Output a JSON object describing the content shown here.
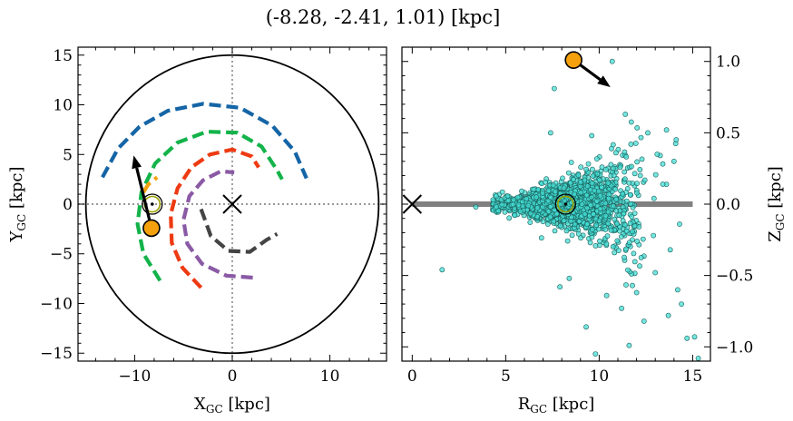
{
  "title": "(-8.28, -2.41, 1.01) [kpc]",
  "colors": {
    "arm_blue": "#1565a6",
    "arm_green": "#13b34a",
    "arm_red": "#ee3a12",
    "arm_purple": "#8a5aa5",
    "arm_dark": "#444444",
    "arm_orange": "#f2a20e",
    "star_fill": "#f5a10e",
    "sun_ring": "#9aa000",
    "scatter_fill": "#44ddd4",
    "scatter_edge": "#1a5e5a",
    "disk_line": "#808080"
  },
  "chart_data": [
    {
      "type": "line",
      "panel": "left",
      "xlabel": "X",
      "xlabel_sub": "GC",
      "xlabel_unit": " [kpc]",
      "ylabel": "Y",
      "ylabel_sub": "GC",
      "ylabel_unit": " [kpc]",
      "xlim": [
        -15.8,
        15.8
      ],
      "ylim": [
        -15.8,
        15.8
      ],
      "xticks": [
        -10,
        0,
        10
      ],
      "xtick_labels": [
        "−10",
        "0",
        "10"
      ],
      "yticks": [
        -15,
        -10,
        -5,
        0,
        5,
        10,
        15
      ],
      "ytick_labels": [
        "−15",
        "−10",
        "−5",
        "0",
        "5",
        "10",
        "15"
      ],
      "boundary_circle_radius": 15,
      "arms": [
        {
          "color_key": "arm_blue",
          "points": [
            [
              -13.3,
              2.7
            ],
            [
              -11.7,
              5.6
            ],
            [
              -9.5,
              7.8
            ],
            [
              -6.6,
              9.4
            ],
            [
              -3.0,
              10.1
            ],
            [
              0.8,
              9.7
            ],
            [
              4.1,
              7.9
            ],
            [
              6.4,
              5.3
            ],
            [
              7.6,
              2.6
            ]
          ]
        },
        {
          "color_key": "arm_green",
          "points": [
            [
              -7.4,
              -7.7
            ],
            [
              -9.1,
              -5.0
            ],
            [
              -9.7,
              -2.0
            ],
            [
              -9.3,
              1.2
            ],
            [
              -7.9,
              4.1
            ],
            [
              -5.6,
              6.2
            ],
            [
              -2.6,
              7.3
            ],
            [
              0.5,
              7.2
            ],
            [
              3.0,
              5.8
            ],
            [
              4.6,
              3.4
            ],
            [
              5.1,
              2.5
            ]
          ]
        },
        {
          "color_key": "arm_red",
          "points": [
            [
              -3.2,
              -8.4
            ],
            [
              -5.1,
              -6.4
            ],
            [
              -6.2,
              -3.9
            ],
            [
              -6.3,
              -1.0
            ],
            [
              -5.6,
              1.6
            ],
            [
              -4.2,
              3.7
            ],
            [
              -2.3,
              5.0
            ],
            [
              0.0,
              5.5
            ],
            [
              2.0,
              4.8
            ],
            [
              2.7,
              3.7
            ]
          ]
        },
        {
          "color_key": "arm_purple",
          "points": [
            [
              2.1,
              -7.4
            ],
            [
              -0.6,
              -7.2
            ],
            [
              -3.1,
              -6.0
            ],
            [
              -4.6,
              -4.0
            ],
            [
              -5.0,
              -1.6
            ],
            [
              -4.4,
              0.8
            ],
            [
              -3.0,
              2.4
            ],
            [
              -1.2,
              3.3
            ],
            [
              0.2,
              3.2
            ]
          ]
        },
        {
          "color_key": "arm_dark",
          "points": [
            [
              -3.2,
              -0.5
            ],
            [
              -2.2,
              -3.2
            ],
            [
              -0.4,
              -4.7
            ],
            [
              1.8,
              -4.8
            ],
            [
              3.5,
              -3.6
            ],
            [
              4.6,
              -3.0
            ]
          ]
        },
        {
          "color_key": "arm_orange",
          "points": [
            [
              -9.1,
              1.2
            ],
            [
              -8.6,
              2.0
            ],
            [
              -7.7,
              2.7
            ]
          ]
        }
      ],
      "sun": [
        -8.2,
        0.0
      ],
      "galactic_center": [
        0.0,
        0.0
      ],
      "star": [
        -8.28,
        -2.41
      ],
      "velocity_arrow_tip": [
        -10.1,
        4.9
      ]
    },
    {
      "type": "scatter",
      "panel": "right",
      "xlabel": "R",
      "xlabel_sub": "GC",
      "xlabel_unit": " [kpc]",
      "ylabel": "Z",
      "ylabel_sub": "GC",
      "ylabel_unit": " [kpc]",
      "xlim": [
        -0.55,
        15.95
      ],
      "ylim": [
        -1.1,
        1.1
      ],
      "xticks": [
        0,
        5,
        10,
        15
      ],
      "xtick_labels": [
        "0",
        "5",
        "10",
        "15"
      ],
      "yticks": [
        -1.0,
        -0.5,
        0.0,
        0.5,
        1.0
      ],
      "ytick_labels": [
        "−1.0",
        "−0.5",
        "0.0",
        "0.5",
        "1.0"
      ],
      "disk_line_x": [
        0.0,
        15.0
      ],
      "sun": [
        8.2,
        0.0
      ],
      "galactic_center": [
        0.0,
        0.0
      ],
      "star": [
        8.63,
        1.01
      ],
      "velocity_arrow_tip": [
        10.6,
        0.82
      ],
      "sample_size": 1800,
      "outliers": [
        [
          1.6,
          -0.46
        ],
        [
          3.4,
          -0.02
        ],
        [
          12.4,
          -0.82
        ],
        [
          14.4,
          -0.7
        ],
        [
          14.7,
          -0.94
        ],
        [
          15.1,
          -0.93
        ],
        [
          15.3,
          -1.08
        ],
        [
          13.7,
          -0.78
        ],
        [
          11.6,
          -0.99
        ],
        [
          9.8,
          -1.05
        ],
        [
          12.0,
          -0.62
        ],
        [
          7.9,
          -0.58
        ],
        [
          14.2,
          -0.6
        ],
        [
          13.0,
          -0.48
        ],
        [
          11.2,
          -0.73
        ],
        [
          10.4,
          -0.64
        ],
        [
          12.6,
          0.5
        ],
        [
          13.6,
          0.52
        ],
        [
          13.1,
          0.35
        ],
        [
          11.7,
          0.42
        ],
        [
          10.9,
          0.36
        ],
        [
          9.6,
          0.48
        ],
        [
          7.6,
          0.81
        ],
        [
          11.4,
          0.63
        ],
        [
          12.2,
          0.2
        ],
        [
          13.4,
          0.14
        ],
        [
          14.0,
          0.3
        ],
        [
          12.9,
          -0.22
        ],
        [
          13.8,
          -0.32
        ],
        [
          14.3,
          -0.14
        ],
        [
          9.3,
          -0.86
        ],
        [
          8.4,
          -0.52
        ],
        [
          10.7,
          1.0
        ],
        [
          7.4,
          0.5
        ]
      ]
    }
  ]
}
